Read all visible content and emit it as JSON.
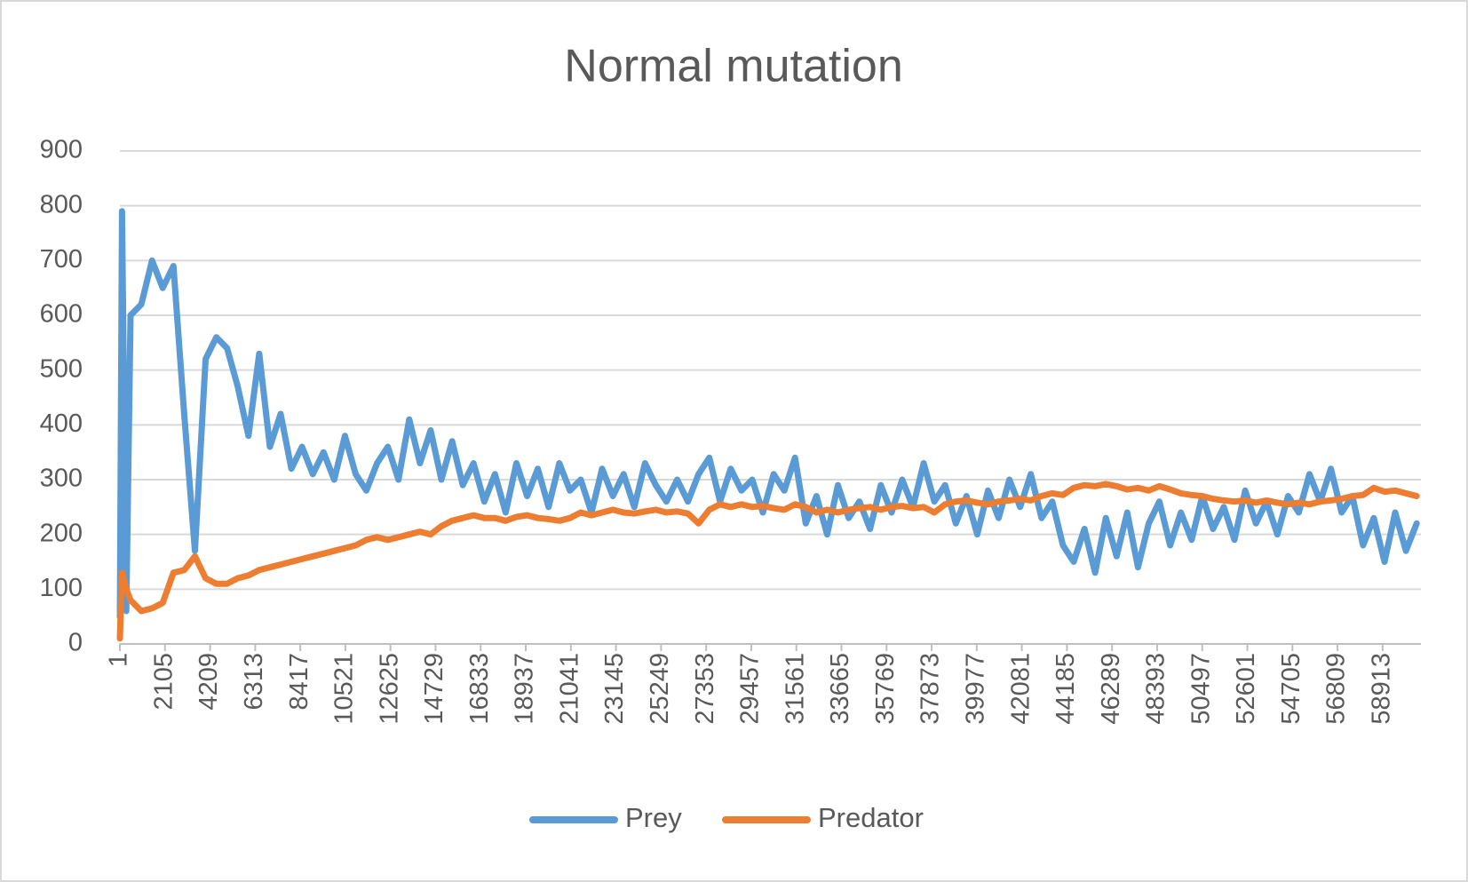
{
  "chart_data": {
    "type": "line",
    "title": "Normal mutation",
    "x": [
      1,
      100,
      300,
      500,
      1000,
      1500,
      2000,
      2500,
      3000,
      3500,
      4000,
      4500,
      5000,
      5500,
      6000,
      6500,
      7000,
      7500,
      8000,
      8500,
      9000,
      9500,
      10000,
      10500,
      11000,
      11500,
      12000,
      12500,
      13000,
      13500,
      14000,
      14500,
      15000,
      15500,
      16000,
      16500,
      17000,
      17500,
      18000,
      18500,
      19000,
      19500,
      20000,
      20500,
      21000,
      21500,
      22000,
      22500,
      23000,
      23500,
      24000,
      24500,
      25000,
      25500,
      26000,
      26500,
      27000,
      27500,
      28000,
      28500,
      29000,
      29500,
      30000,
      30500,
      31000,
      31500,
      32000,
      32500,
      33000,
      33500,
      34000,
      34500,
      35000,
      35500,
      36000,
      36500,
      37000,
      37500,
      38000,
      38500,
      39000,
      39500,
      40000,
      40500,
      41000,
      41500,
      42000,
      42500,
      43000,
      43500,
      44000,
      44500,
      45000,
      45500,
      46000,
      46500,
      47000,
      47500,
      48000,
      48500,
      49000,
      49500,
      50000,
      50500,
      51000,
      51500,
      52000,
      52500,
      53000,
      53500,
      54000,
      54500,
      55000,
      55500,
      56000,
      56500,
      57000,
      57500,
      58000,
      58500,
      59000,
      59500,
      60000,
      60500
    ],
    "series": [
      {
        "name": "Prey",
        "color": "#5b9bd5",
        "values": [
          50,
          790,
          60,
          600,
          620,
          700,
          650,
          690,
          420,
          170,
          520,
          560,
          540,
          470,
          380,
          530,
          360,
          420,
          320,
          360,
          310,
          350,
          300,
          380,
          310,
          280,
          330,
          360,
          300,
          410,
          330,
          390,
          300,
          370,
          290,
          330,
          260,
          310,
          240,
          330,
          270,
          320,
          250,
          330,
          280,
          300,
          240,
          320,
          270,
          310,
          250,
          330,
          290,
          260,
          300,
          260,
          310,
          340,
          260,
          320,
          280,
          300,
          240,
          310,
          280,
          340,
          220,
          270,
          200,
          290,
          230,
          260,
          210,
          290,
          240,
          300,
          250,
          330,
          260,
          290,
          220,
          270,
          200,
          280,
          230,
          300,
          250,
          310,
          230,
          260,
          180,
          150,
          210,
          130,
          230,
          160,
          240,
          140,
          220,
          260,
          180,
          240,
          190,
          270,
          210,
          250,
          190,
          280,
          220,
          260,
          200,
          270,
          240,
          310,
          260,
          320,
          240,
          270,
          180,
          230,
          150,
          240,
          170,
          220
        ]
      },
      {
        "name": "Predator",
        "color": "#ed7d31",
        "values": [
          10,
          130,
          100,
          80,
          60,
          65,
          75,
          130,
          135,
          160,
          120,
          110,
          110,
          120,
          125,
          135,
          140,
          145,
          150,
          155,
          160,
          165,
          170,
          175,
          180,
          190,
          195,
          190,
          195,
          200,
          205,
          200,
          215,
          225,
          230,
          235,
          230,
          230,
          225,
          232,
          235,
          230,
          228,
          225,
          230,
          240,
          235,
          240,
          245,
          240,
          238,
          242,
          245,
          240,
          242,
          238,
          220,
          245,
          255,
          250,
          255,
          250,
          252,
          248,
          245,
          255,
          250,
          240,
          245,
          240,
          245,
          248,
          250,
          245,
          250,
          252,
          248,
          250,
          240,
          255,
          260,
          262,
          258,
          255,
          260,
          262,
          265,
          262,
          270,
          275,
          272,
          285,
          290,
          288,
          292,
          288,
          282,
          285,
          280,
          288,
          282,
          275,
          272,
          270,
          265,
          262,
          260,
          262,
          258,
          262,
          258,
          255,
          258,
          255,
          260,
          262,
          265,
          270,
          272,
          285,
          278,
          280,
          275,
          270
        ]
      }
    ],
    "xlim": [
      1,
      60700
    ],
    "xticks": [
      1,
      2105,
      4209,
      6313,
      8417,
      10521,
      12625,
      14729,
      16833,
      18937,
      21041,
      23145,
      25249,
      27353,
      29457,
      31561,
      33665,
      35769,
      37873,
      39977,
      42081,
      44185,
      46289,
      48393,
      50497,
      52601,
      54705,
      56809,
      58913
    ],
    "ylim": [
      0,
      900
    ],
    "yticks": [
      0,
      100,
      200,
      300,
      400,
      500,
      600,
      700,
      800,
      900
    ],
    "grid": true
  }
}
